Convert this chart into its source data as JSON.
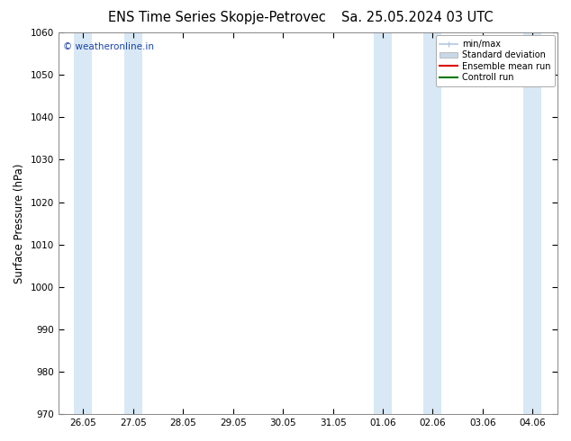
{
  "title_left": "ENS Time Series Skopje-Petrovec",
  "title_right": "Sa. 25.05.2024 03 UTC",
  "ylabel": "Surface Pressure (hPa)",
  "ylim": [
    970,
    1060
  ],
  "yticks": [
    970,
    980,
    990,
    1000,
    1010,
    1020,
    1030,
    1040,
    1050,
    1060
  ],
  "xtick_labels": [
    "26.05",
    "27.05",
    "28.05",
    "29.05",
    "30.05",
    "31.05",
    "01.06",
    "02.06",
    "03.06",
    "04.06"
  ],
  "background_color": "#ffffff",
  "plot_bg_color": "#ffffff",
  "band_color": "#d8e8f5",
  "watermark": "© weatheronline.in",
  "watermark_color": "#1a44aa",
  "legend_minmax_color": "#b0c8e0",
  "legend_stddev_color": "#c8d8e8",
  "legend_mean_color": "#dd0000",
  "legend_ctrl_color": "#007700",
  "title_fontsize": 10.5,
  "tick_fontsize": 7.5,
  "ylabel_fontsize": 8.5,
  "spine_color": "#888888"
}
